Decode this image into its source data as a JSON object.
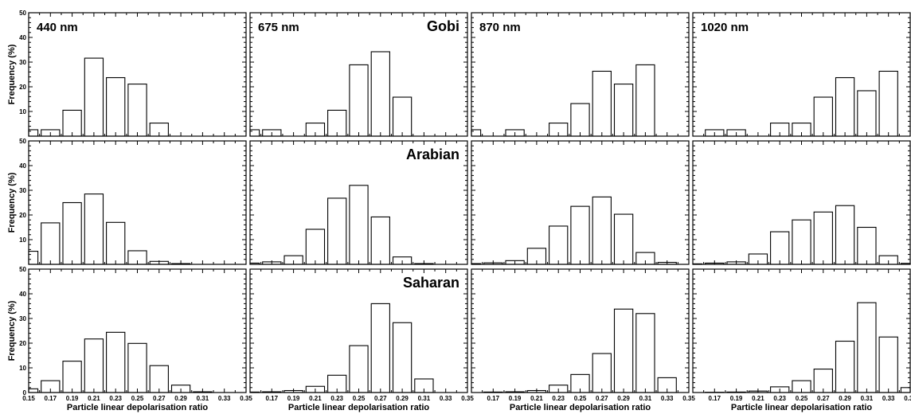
{
  "chart_data": {
    "type": "bar",
    "description_free": true,
    "xlabel": "Particle linear depolarisation ratio",
    "ylabel": "Frequency (%)",
    "xlim": [
      0.15,
      0.35
    ],
    "ylim": [
      0,
      50
    ],
    "x_ticks": [
      "0.15",
      "0.17",
      "0.19",
      "0.21",
      "0.23",
      "0.25",
      "0.27",
      "0.29",
      "0.31",
      "0.33",
      "0.35"
    ],
    "y_ticks": [
      "0",
      "10",
      "20",
      "30",
      "40",
      "50"
    ],
    "bin_width": 0.02,
    "bin_centers": [
      0.15,
      0.17,
      0.19,
      0.21,
      0.23,
      0.25,
      0.27,
      0.29,
      0.31,
      0.33,
      0.35
    ],
    "columns": [
      "440 nm",
      "675 nm",
      "870 nm",
      "1020 nm"
    ],
    "rows": [
      "Gobi",
      "Arabian",
      "Saharan"
    ],
    "panels": [
      [
        {
          "values": [
            2.6,
            2.6,
            10.5,
            31.6,
            23.7,
            21.1,
            5.3,
            0,
            0,
            0,
            0
          ]
        },
        {
          "values": [
            2.6,
            2.6,
            0,
            5.3,
            10.5,
            28.9,
            34.2,
            15.8,
            0,
            0,
            0
          ]
        },
        {
          "values": [
            2.6,
            0,
            2.6,
            0,
            5.3,
            13.2,
            26.3,
            21.1,
            28.9,
            0,
            0
          ]
        },
        {
          "values": [
            0,
            2.6,
            2.6,
            0,
            5.3,
            5.3,
            15.8,
            23.7,
            18.4,
            26.3,
            0
          ]
        }
      ],
      [
        {
          "values": [
            5.3,
            16.8,
            25.0,
            28.5,
            17.0,
            5.5,
            1.2,
            0.3,
            0,
            0,
            0
          ]
        },
        {
          "values": [
            0.5,
            1.0,
            3.5,
            14.2,
            26.8,
            32.0,
            19.2,
            3.0,
            0.3,
            0,
            0
          ]
        },
        {
          "values": [
            0.3,
            0.6,
            1.5,
            6.5,
            15.5,
            23.5,
            27.3,
            20.3,
            4.8,
            0.8,
            0
          ]
        },
        {
          "values": [
            0.2,
            0.5,
            1.0,
            4.2,
            13.2,
            18.0,
            21.2,
            23.8,
            15.0,
            3.5,
            0.4
          ]
        }
      ],
      [
        {
          "values": [
            1.5,
            4.8,
            12.7,
            21.7,
            24.4,
            19.9,
            10.9,
            3.0,
            0.3,
            0,
            0
          ]
        },
        {
          "values": [
            0.2,
            0.3,
            0.8,
            2.5,
            7.0,
            19.0,
            36.0,
            28.3,
            5.5,
            0,
            0
          ]
        },
        {
          "values": [
            0,
            0.2,
            0.3,
            0.8,
            3.0,
            7.3,
            15.8,
            33.8,
            32.0,
            6.0,
            0
          ]
        },
        {
          "values": [
            0,
            0.1,
            0.2,
            0.6,
            2.3,
            4.8,
            9.5,
            20.8,
            36.4,
            22.5,
            2.0
          ]
        }
      ]
    ]
  }
}
